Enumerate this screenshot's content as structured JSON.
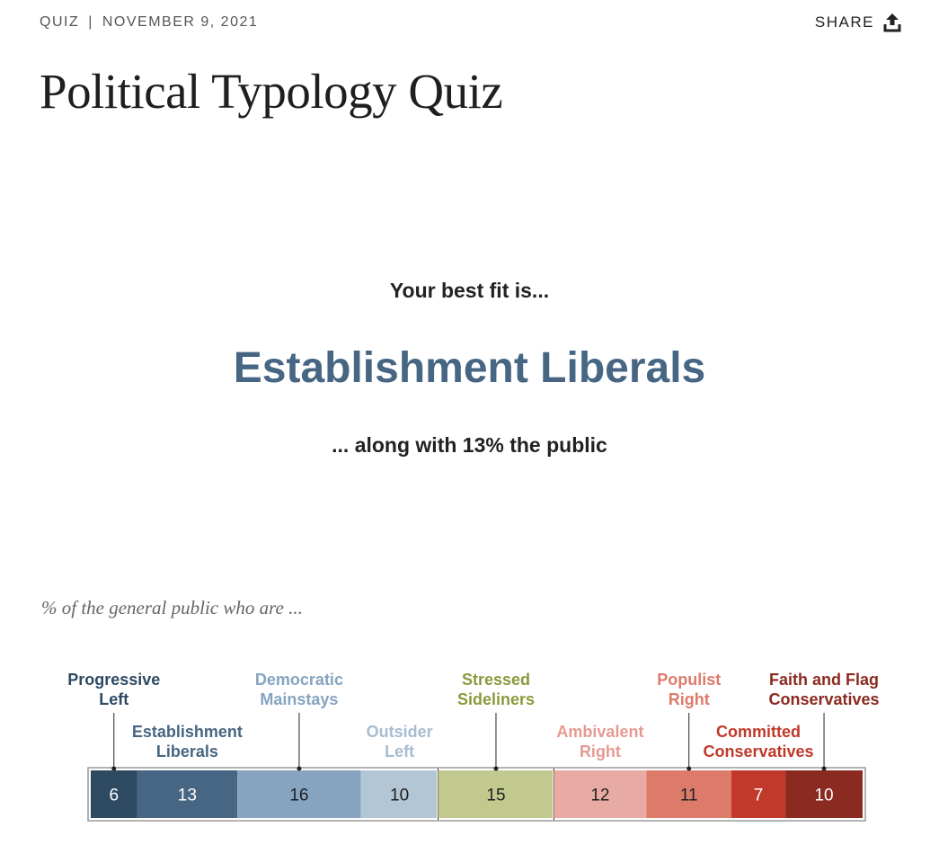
{
  "header": {
    "section": "QUIZ",
    "separator": "|",
    "date": "NOVEMBER 9, 2021",
    "share_label": "SHARE",
    "share_icon": "share-upload-icon"
  },
  "title": "Political Typology Quiz",
  "result": {
    "intro": "Your best fit is...",
    "typology": "Establishment Liberals",
    "note": "... along with 13% the public",
    "accent_color": "#476683"
  },
  "chart_caption": "% of the general public who are ...",
  "chart_data": {
    "type": "bar",
    "orientation": "horizontal-stacked",
    "title": "",
    "unit": "%",
    "total": 100,
    "segments": [
      {
        "name": "Progressive Left",
        "label_lines": [
          "Progressive",
          "Left"
        ],
        "value": 6,
        "color": "#2e4a63",
        "label_color": "#2e4a63",
        "value_color": "#ffffff",
        "label_tier": "top",
        "leader": true
      },
      {
        "name": "Establishment Liberals",
        "label_lines": [
          "Establishment",
          "Liberals"
        ],
        "value": 13,
        "color": "#476683",
        "label_color": "#476683",
        "value_color": "#ffffff",
        "label_tier": "bottom",
        "leader": false
      },
      {
        "name": "Democratic Mainstays",
        "label_lines": [
          "Democratic",
          "Mainstays"
        ],
        "value": 16,
        "color": "#86a4c0",
        "label_color": "#86a4c0",
        "value_color": "#1f1f1f",
        "label_tier": "top",
        "leader": true
      },
      {
        "name": "Outsider Left",
        "label_lines": [
          "Outsider",
          "Left"
        ],
        "value": 10,
        "color": "#b2c6d6",
        "label_color": "#a7bccf",
        "value_color": "#1f1f1f",
        "label_tier": "bottom",
        "leader": false
      },
      {
        "name": "Stressed Sideliners",
        "label_lines": [
          "Stressed",
          "Sideliners"
        ],
        "value": 15,
        "color": "#c2c98f",
        "label_color": "#8b9a3c",
        "value_color": "#1f1f1f",
        "label_tier": "top",
        "leader": true
      },
      {
        "name": "Ambivalent Right",
        "label_lines": [
          "Ambivalent",
          "Right"
        ],
        "value": 12,
        "color": "#e8aba3",
        "label_color": "#e59a92",
        "value_color": "#1f1f1f",
        "label_tier": "bottom",
        "leader": false
      },
      {
        "name": "Populist Right",
        "label_lines": [
          "Populist",
          "Right"
        ],
        "value": 11,
        "color": "#dd7b6b",
        "label_color": "#dd7b6b",
        "value_color": "#1f1f1f",
        "label_tier": "top",
        "leader": true
      },
      {
        "name": "Committed Conservatives",
        "label_lines": [
          "Committed",
          "Conservatives"
        ],
        "value": 7,
        "color": "#c0392b",
        "label_color": "#c0392b",
        "value_color": "#ffffff",
        "label_tier": "bottom",
        "leader": false
      },
      {
        "name": "Faith and Flag Conservatives",
        "label_lines": [
          "Faith and Flag",
          "Conservatives"
        ],
        "value": 10,
        "color": "#8b2a20",
        "label_color": "#8b2a20",
        "value_color": "#ffffff",
        "label_tier": "top",
        "leader": true
      }
    ],
    "group_dividers_after": [
      "Outsider Left",
      "Stressed Sideliners"
    ]
  }
}
